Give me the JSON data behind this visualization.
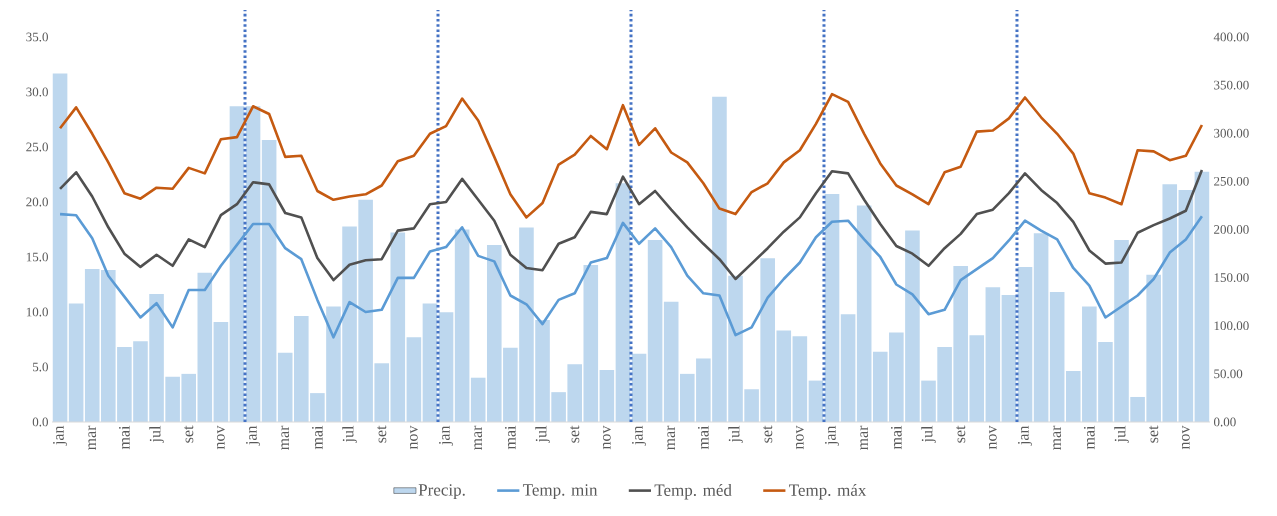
{
  "chart_data": {
    "type": "bar",
    "categories": [
      "jan",
      null,
      "mar",
      null,
      "mai",
      null,
      "jul",
      null,
      "set",
      null,
      "nov",
      null,
      "jan",
      null,
      "mar",
      null,
      "mai",
      null,
      "jul",
      null,
      "set",
      null,
      "nov",
      null,
      "jan",
      null,
      "mar",
      null,
      "mai",
      null,
      "jul",
      null,
      "set",
      null,
      "nov",
      null,
      "jan",
      null,
      "mar",
      null,
      "mai",
      null,
      "jul",
      null,
      "set",
      null,
      "nov",
      null,
      "jan",
      null,
      "mar",
      null,
      "mai",
      null,
      "jul",
      null,
      "set",
      null,
      "nov",
      null,
      "jan",
      null,
      "mar",
      null,
      "mai",
      null,
      "jul",
      null,
      "set",
      null,
      "nov",
      null
    ],
    "series": [
      {
        "name": "Precip.",
        "axis": "y2",
        "color": "#bdd7ee",
        "values": [
          362,
          123,
          159,
          158,
          78,
          84,
          133,
          47,
          50,
          155,
          104,
          328,
          328,
          293,
          72,
          110,
          30,
          120,
          203,
          231,
          61,
          197,
          88,
          123,
          114,
          200,
          46,
          184,
          77,
          202,
          106,
          31,
          60,
          163,
          54,
          248,
          71,
          189,
          125,
          50,
          66,
          338,
          152,
          34,
          170,
          95,
          89,
          43,
          237,
          112,
          225,
          73,
          93,
          199,
          43,
          78,
          162,
          90,
          140,
          132,
          161,
          196,
          135,
          53,
          120,
          83,
          189,
          26,
          153,
          247,
          241,
          260
        ]
      },
      {
        "name": "Temp. min",
        "type": "line",
        "color": "#5b9bd5",
        "values": [
          18.9,
          18.8,
          16.7,
          13.3,
          11.4,
          9.5,
          10.8,
          8.6,
          12.0,
          12.0,
          14.2,
          16.1,
          18.0,
          18.0,
          15.8,
          14.8,
          11.1,
          7.7,
          10.9,
          10.0,
          10.2,
          13.1,
          13.1,
          15.5,
          15.9,
          17.7,
          15.1,
          14.6,
          11.5,
          10.7,
          8.9,
          11.1,
          11.7,
          14.5,
          14.9,
          18.1,
          16.2,
          17.6,
          15.9,
          13.3,
          11.7,
          11.5,
          7.9,
          8.6,
          11.3,
          13.0,
          14.5,
          16.8,
          18.2,
          18.3,
          16.6,
          15.0,
          12.5,
          11.6,
          9.8,
          10.2,
          12.9,
          13.9,
          14.9,
          16.5,
          18.3,
          17.4,
          16.6,
          14.0,
          12.4,
          9.5,
          10.5,
          11.5,
          13.0,
          15.4,
          16.6,
          18.7
        ]
      },
      {
        "name": "Temp. méd",
        "type": "line",
        "color": "#505050",
        "values": [
          21.2,
          22.7,
          20.5,
          17.7,
          15.3,
          14.1,
          15.2,
          14.2,
          16.6,
          15.9,
          18.8,
          19.8,
          21.8,
          21.6,
          19.0,
          18.6,
          14.9,
          12.9,
          14.3,
          14.7,
          14.8,
          17.4,
          17.6,
          19.8,
          20.0,
          22.1,
          20.2,
          18.3,
          15.2,
          14.0,
          13.8,
          16.2,
          16.8,
          19.1,
          18.9,
          22.3,
          19.8,
          21.0,
          19.3,
          17.7,
          16.2,
          14.8,
          13.0,
          14.4,
          15.8,
          17.3,
          18.6,
          20.8,
          22.8,
          22.6,
          20.2,
          18.0,
          16.0,
          15.3,
          14.2,
          15.8,
          17.1,
          18.9,
          19.3,
          20.8,
          22.6,
          21.1,
          19.9,
          18.2,
          15.6,
          14.4,
          14.5,
          17.2,
          17.9,
          18.5,
          19.2,
          22.9
        ]
      },
      {
        "name": "Temp. máx",
        "type": "line",
        "color": "#c55a11",
        "values": [
          26.7,
          28.6,
          26.2,
          23.6,
          20.8,
          20.3,
          21.3,
          21.2,
          23.1,
          22.6,
          25.7,
          25.9,
          28.7,
          28.0,
          24.1,
          24.2,
          21.0,
          20.2,
          20.5,
          20.7,
          21.5,
          23.7,
          24.2,
          26.2,
          26.9,
          29.4,
          27.4,
          24.1,
          20.7,
          18.6,
          19.9,
          23.4,
          24.3,
          26.0,
          24.8,
          28.8,
          25.2,
          26.7,
          24.5,
          23.6,
          21.7,
          19.4,
          18.9,
          20.9,
          21.7,
          23.6,
          24.7,
          27.1,
          29.8,
          29.1,
          26.2,
          23.5,
          21.5,
          20.7,
          19.8,
          22.7,
          23.2,
          26.4,
          26.5,
          27.6,
          29.5,
          27.7,
          26.2,
          24.4,
          20.8,
          20.4,
          19.8,
          24.7,
          24.6,
          23.8,
          24.2,
          27.0
        ]
      }
    ],
    "ylim": [
      0,
      35
    ],
    "yticks": [
      {
        "value": 0,
        "label": "0.0"
      },
      {
        "value": 5,
        "label": "5.0"
      },
      {
        "value": 10,
        "label": "10.0"
      },
      {
        "value": 15,
        "label": "15.0"
      },
      {
        "value": 20,
        "label": "20.0"
      },
      {
        "value": 25,
        "label": "25.0"
      },
      {
        "value": 30,
        "label": "30.0"
      },
      {
        "value": 35,
        "label": "35.0"
      }
    ],
    "y2lim": [
      0,
      400
    ],
    "y2ticks": [
      {
        "value": 0,
        "label": "0.00"
      },
      {
        "value": 50,
        "label": "50.00"
      },
      {
        "value": 100,
        "label": "100.00"
      },
      {
        "value": 150,
        "label": "150.00"
      },
      {
        "value": 200,
        "label": "200.00"
      },
      {
        "value": 250,
        "label": "250.00"
      },
      {
        "value": 300,
        "label": "300.00"
      },
      {
        "value": 350,
        "label": "350.00"
      },
      {
        "value": 400,
        "label": "400.00"
      }
    ],
    "legend": "bottom"
  }
}
